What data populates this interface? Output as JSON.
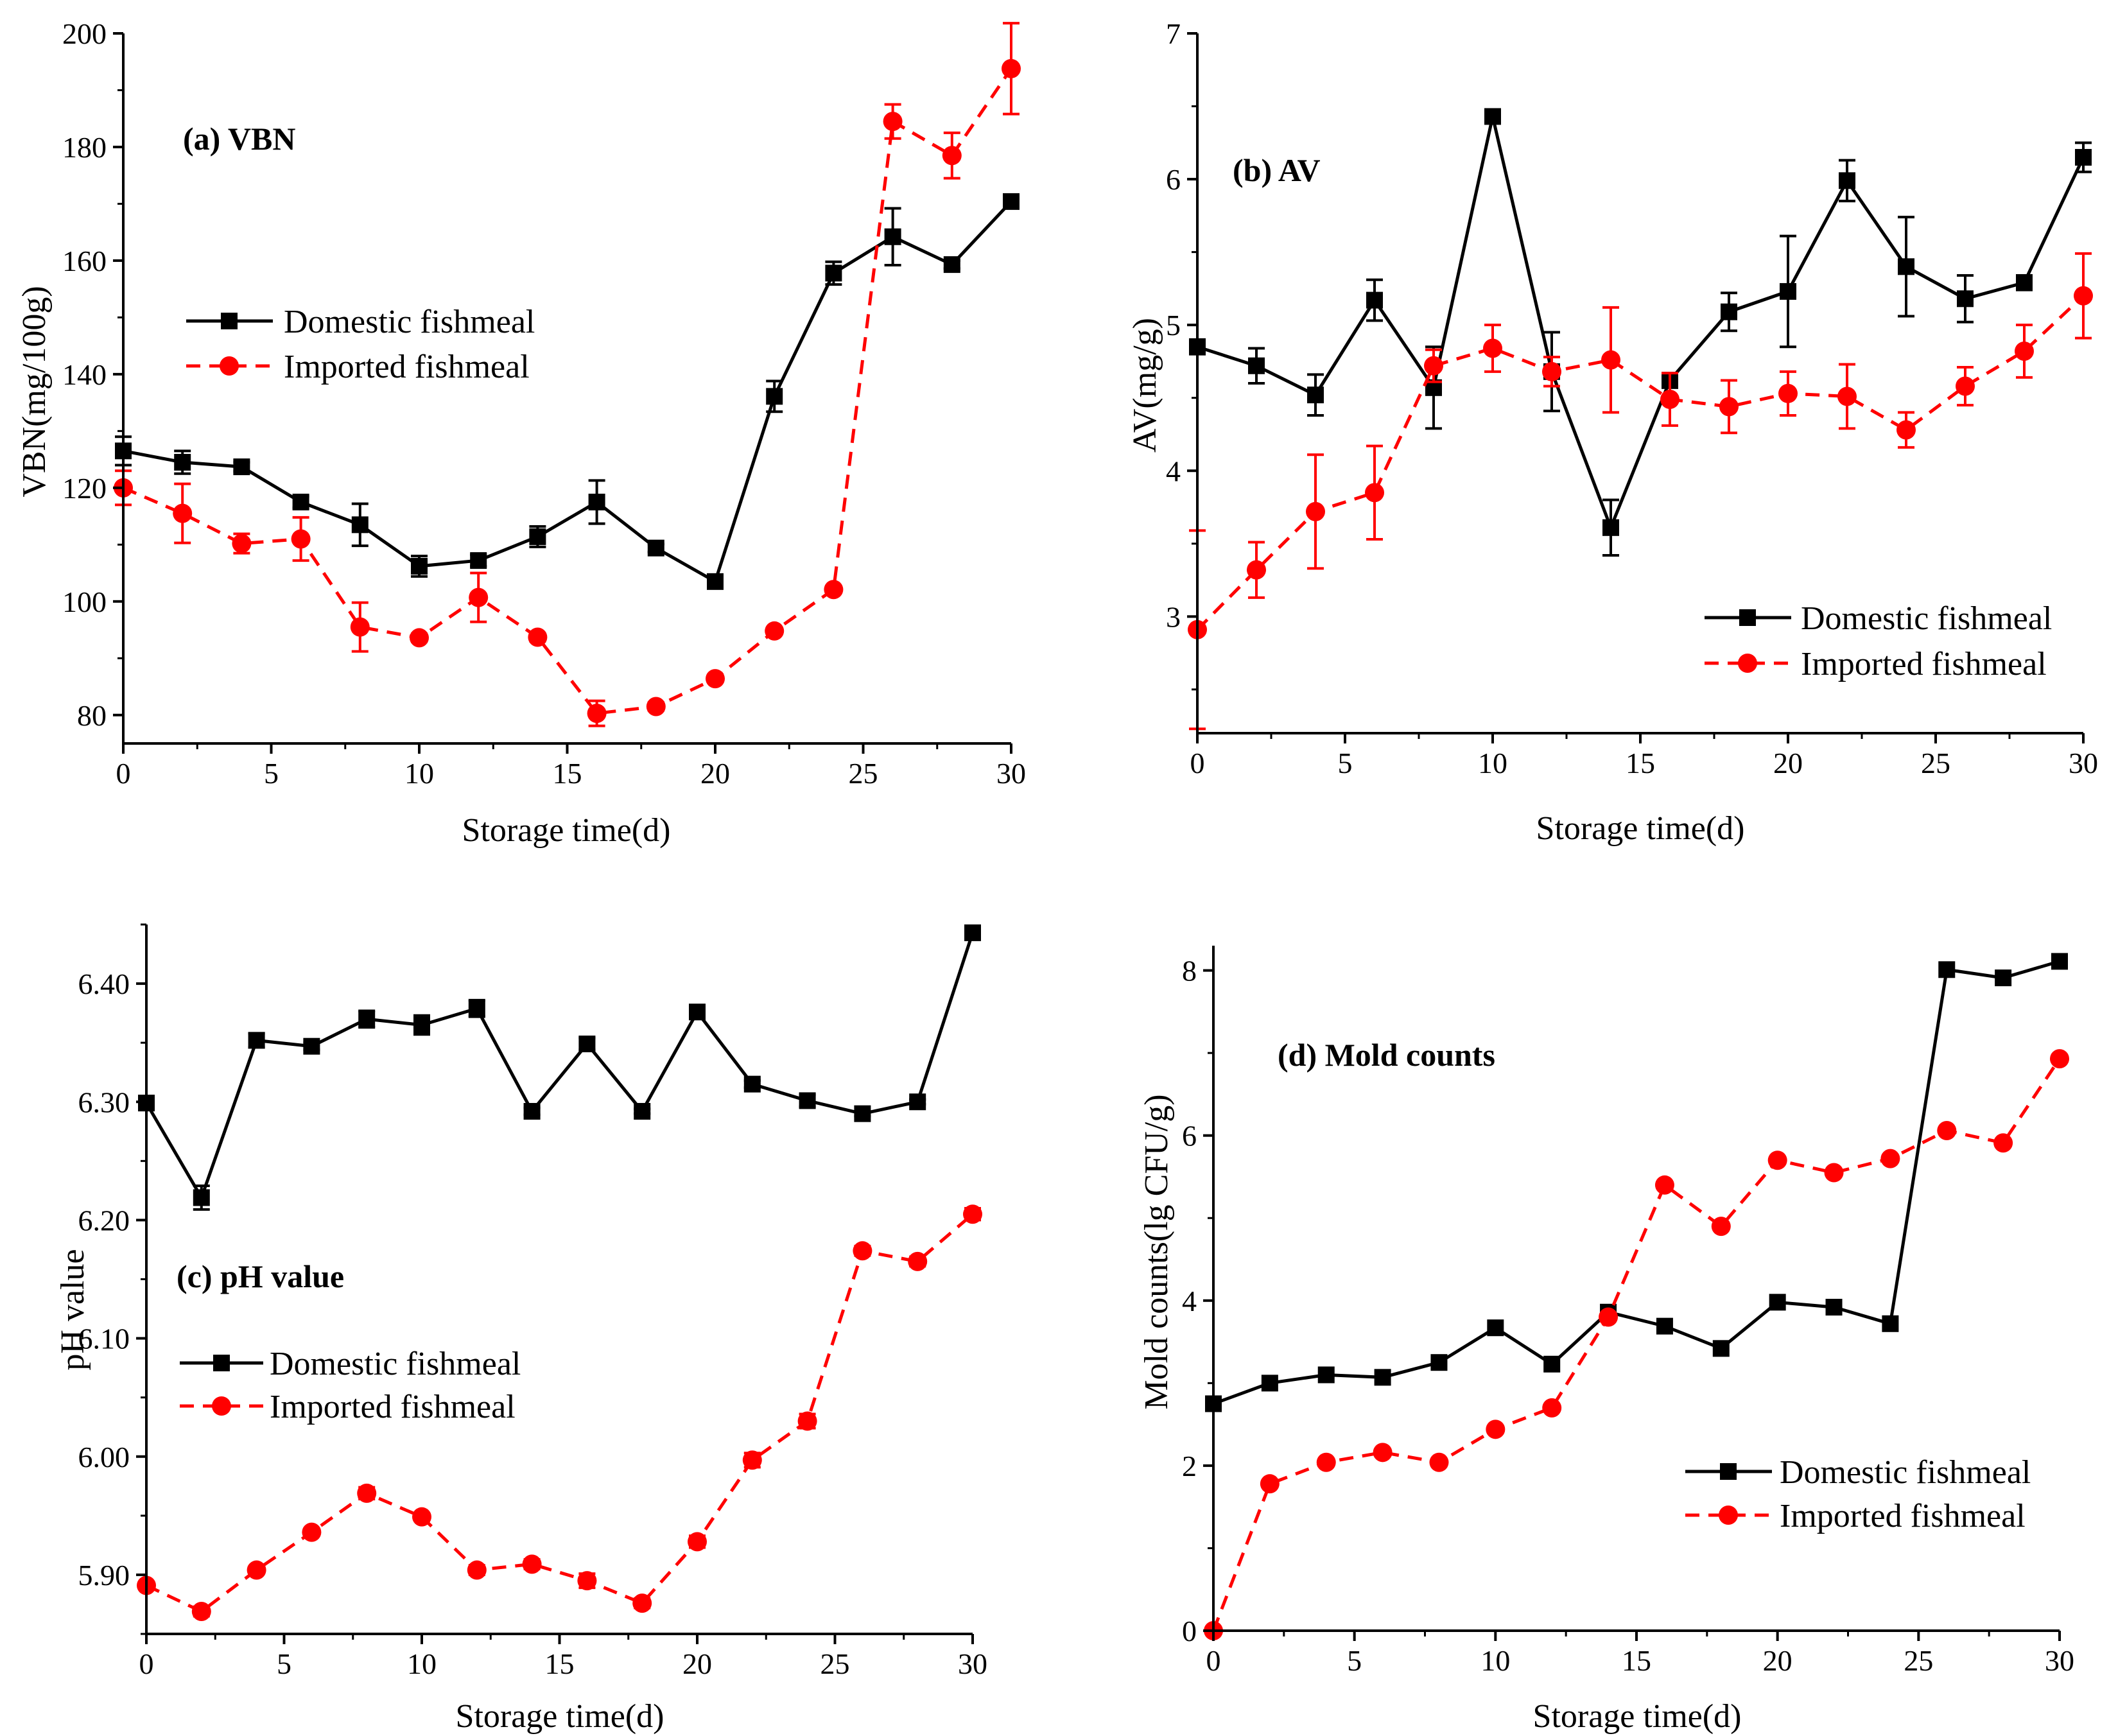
{
  "chart_data": [
    {
      "id": "a",
      "type": "line",
      "title": "(a) VBN",
      "xlabel": "Storage time(d)",
      "ylabel": "VBN(mg/100g)",
      "xlim": [
        0,
        30
      ],
      "ylim": [
        75,
        200
      ],
      "xticks": [
        0,
        5,
        10,
        15,
        20,
        25,
        30
      ],
      "yticks": [
        80,
        100,
        120,
        140,
        160,
        180,
        200
      ],
      "x": [
        0,
        2,
        4,
        6,
        8,
        10,
        12,
        14,
        16,
        18,
        20,
        22,
        24,
        26,
        28,
        30
      ],
      "series": [
        {
          "name": "Domestic fishmeal",
          "color": "#000000",
          "marker": "square",
          "dash": false,
          "values": [
            126.5,
            124.5,
            123.7,
            117.5,
            113.5,
            106.2,
            107.2,
            111.4,
            117.5,
            109.4,
            103.5,
            136.1,
            157.8,
            164.2,
            159.3,
            170.4
          ],
          "errors": [
            2.5,
            2.0,
            0.8,
            1.0,
            3.7,
            1.8,
            1.0,
            1.8,
            3.8,
            0.7,
            0.7,
            2.7,
            2.0,
            5.0,
            0.7,
            0.6
          ]
        },
        {
          "name": "Imported fishmeal",
          "color": "#ff0000",
          "marker": "circle",
          "dash": true,
          "values": [
            120.0,
            115.5,
            110.2,
            111.0,
            95.5,
            93.6,
            100.7,
            93.7,
            80.3,
            81.5,
            86.4,
            94.8,
            102.1,
            184.5,
            178.5,
            193.8
          ],
          "errors": [
            3.0,
            5.2,
            1.7,
            3.8,
            4.3,
            0.7,
            4.3,
            0.7,
            2.2,
            0.7,
            0.5,
            0.6,
            0.6,
            3.0,
            4.0,
            8.0
          ]
        }
      ],
      "legend": {
        "position": "middle-left"
      }
    },
    {
      "id": "b",
      "type": "line",
      "title": "(b) AV",
      "xlabel": "Storage time(d)",
      "ylabel": "AV(mg/g)",
      "xlim": [
        0,
        30
      ],
      "ylim": [
        2.2,
        7
      ],
      "xticks": [
        0,
        5,
        10,
        15,
        20,
        25,
        30
      ],
      "yticks": [
        3,
        4,
        5,
        6,
        7
      ],
      "x": [
        0,
        2,
        4,
        6,
        8,
        10,
        12,
        14,
        16,
        18,
        20,
        22,
        24,
        26,
        28,
        30
      ],
      "series": [
        {
          "name": "Domestic fishmeal",
          "color": "#000000",
          "marker": "square",
          "dash": false,
          "values": [
            4.85,
            4.72,
            4.52,
            5.17,
            4.57,
            6.43,
            4.68,
            3.61,
            4.62,
            5.09,
            5.23,
            5.99,
            5.4,
            5.18,
            5.29,
            6.15
          ],
          "errors": [
            0.05,
            0.12,
            0.14,
            0.14,
            0.28,
            0.03,
            0.27,
            0.19,
            0.05,
            0.13,
            0.38,
            0.14,
            0.34,
            0.16,
            0.05,
            0.1
          ]
        },
        {
          "name": "Imported fishmeal",
          "color": "#ff0000",
          "marker": "circle",
          "dash": true,
          "values": [
            2.91,
            3.32,
            3.72,
            3.85,
            4.72,
            4.84,
            4.68,
            4.76,
            4.49,
            4.44,
            4.53,
            4.51,
            4.28,
            4.58,
            4.82,
            5.2
          ],
          "errors": [
            0.68,
            0.19,
            0.39,
            0.32,
            0.11,
            0.16,
            0.1,
            0.36,
            0.18,
            0.18,
            0.15,
            0.22,
            0.12,
            0.13,
            0.18,
            0.29
          ]
        }
      ],
      "legend": {
        "position": "lower-right"
      }
    },
    {
      "id": "c",
      "type": "line",
      "title": "(c) pH value",
      "xlabel": "Storage time(d)",
      "ylabel": "pH value",
      "xlim": [
        0,
        30
      ],
      "ylim": [
        5.85,
        6.45
      ],
      "xticks": [
        0,
        5,
        10,
        15,
        20,
        25,
        30
      ],
      "yticks": [
        5.9,
        6.0,
        6.1,
        6.2,
        6.3,
        6.4
      ],
      "x": [
        0,
        2,
        4,
        6,
        8,
        10,
        12,
        14,
        16,
        18,
        20,
        22,
        24,
        26,
        28,
        30
      ],
      "series": [
        {
          "name": "Domestic fishmeal",
          "color": "#000000",
          "marker": "square",
          "dash": false,
          "values": [
            6.299,
            6.219,
            6.352,
            6.347,
            6.37,
            6.365,
            6.379,
            6.292,
            6.349,
            6.292,
            6.376,
            6.315,
            6.301,
            6.29,
            6.3,
            6.443
          ],
          "errors": [
            0.003,
            0.01,
            0.006,
            0.003,
            0.007,
            0.008,
            0.007,
            0.003,
            0.005,
            0.002,
            0.003,
            0.003,
            0.005,
            0.002,
            0.002,
            0.003
          ]
        },
        {
          "name": "Imported fishmeal",
          "color": "#ff0000",
          "marker": "circle",
          "dash": true,
          "values": [
            5.891,
            5.869,
            5.904,
            5.936,
            5.969,
            5.949,
            5.904,
            5.909,
            5.895,
            5.876,
            5.928,
            5.997,
            6.03,
            6.174,
            6.165,
            6.205
          ],
          "errors": [
            0.003,
            0.004,
            0.003,
            0.003,
            0.005,
            0.003,
            0.004,
            0.004,
            0.006,
            0.004,
            0.005,
            0.006,
            0.006,
            0.004,
            0.004,
            0.005
          ]
        }
      ],
      "legend": {
        "position": "middle-left"
      }
    },
    {
      "id": "d",
      "type": "line",
      "title": "(d) Mold counts",
      "xlabel": "Storage time(d)",
      "ylabel": "Mold counts(lg CFU/g)",
      "xlim": [
        0,
        30
      ],
      "ylim": [
        0,
        8.3
      ],
      "xticks": [
        0,
        5,
        10,
        15,
        20,
        25,
        30
      ],
      "yticks": [
        0,
        2,
        4,
        6,
        8
      ],
      "x": [
        0,
        2,
        4,
        6,
        8,
        10,
        12,
        14,
        16,
        18,
        20,
        22,
        24,
        26,
        28,
        30
      ],
      "series": [
        {
          "name": "Domestic fishmeal",
          "color": "#000000",
          "marker": "square",
          "dash": false,
          "values": [
            2.75,
            3.0,
            3.1,
            3.07,
            3.25,
            3.67,
            3.23,
            3.86,
            3.69,
            3.42,
            3.98,
            3.92,
            3.72,
            8.01,
            7.91,
            8.11
          ],
          "errors": [
            0,
            0,
            0,
            0,
            0,
            0,
            0,
            0,
            0,
            0,
            0,
            0,
            0,
            0,
            0,
            0
          ]
        },
        {
          "name": "Imported fishmeal",
          "color": "#ff0000",
          "marker": "circle",
          "dash": true,
          "values": [
            0.0,
            1.78,
            2.04,
            2.16,
            2.04,
            2.44,
            2.7,
            3.8,
            5.4,
            4.9,
            5.7,
            5.55,
            5.72,
            6.06,
            5.91,
            6.93
          ],
          "errors": [
            0,
            0,
            0,
            0,
            0,
            0,
            0,
            0,
            0,
            0,
            0,
            0,
            0,
            0,
            0,
            0
          ]
        }
      ],
      "legend": {
        "position": "lower-right"
      }
    }
  ]
}
